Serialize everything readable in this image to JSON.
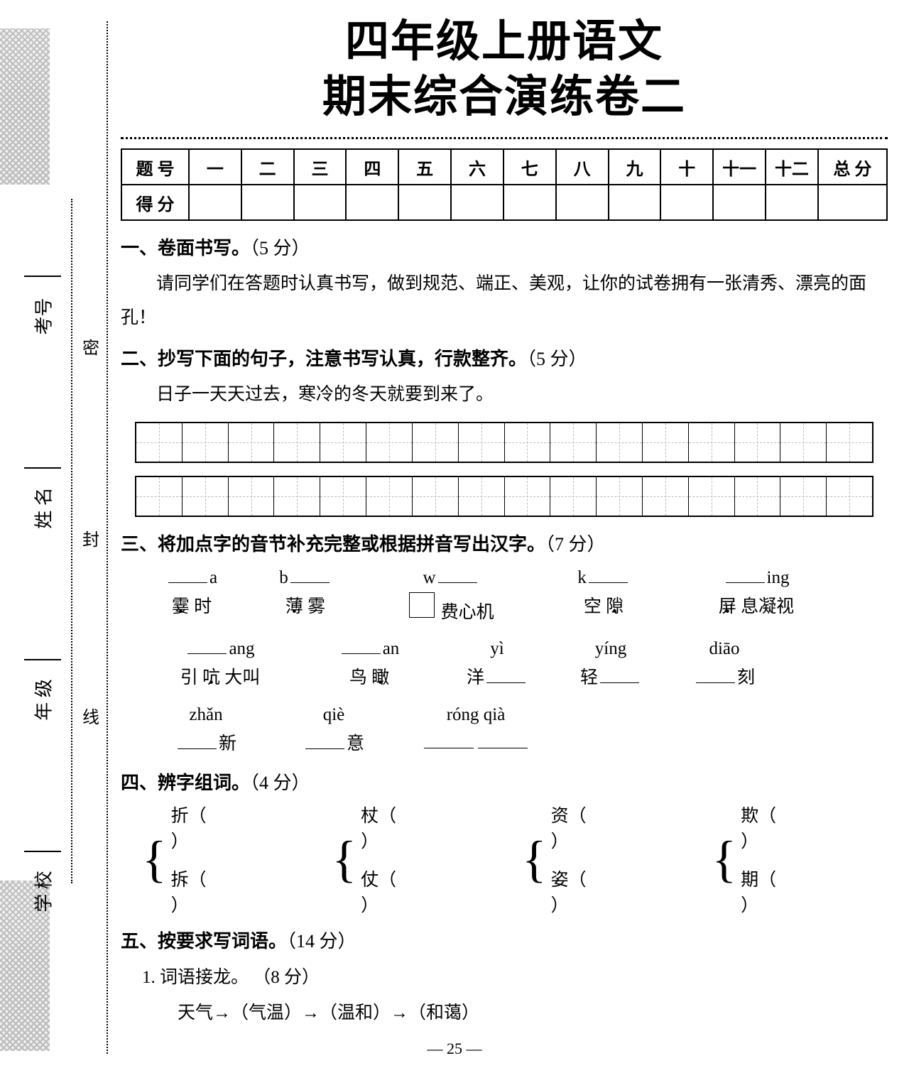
{
  "colors": {
    "text": "#000000",
    "bg": "#ffffff",
    "deco": "#bbbbbb",
    "dash": "#bbbbbb"
  },
  "title_line1": "四年级上册语文",
  "title_line2": "期末综合演练卷二",
  "score_table": {
    "row_label": "题 号",
    "score_label": "得 分",
    "cols": [
      "一",
      "二",
      "三",
      "四",
      "五",
      "六",
      "七",
      "八",
      "九",
      "十",
      "十一",
      "十二"
    ],
    "total": "总 分"
  },
  "side": {
    "v_labels": [
      "密",
      "封",
      "线"
    ],
    "fields": [
      {
        "label": "考号"
      },
      {
        "label": "姓 名"
      },
      {
        "label": "年 级"
      },
      {
        "label": "学 校"
      }
    ]
  },
  "sec1": {
    "title": "一、卷面书写。",
    "points": "（5 分）",
    "text": "请同学们在答题时认真书写，做到规范、端正、美观，让你的试卷拥有一张清秀、漂亮的面孔！"
  },
  "sec2": {
    "title": "二、抄写下面的句子，注意书写认真，行款整齐。",
    "points": "（5 分）",
    "sentence": "日子一天天过去，寒冷的冬天就要到来了。",
    "grid": {
      "rows": 2,
      "cols": 16
    }
  },
  "sec3": {
    "title": "三、将加点字的音节补充完整或根据拼音写出汉字。",
    "points": "（7 分）",
    "row1": {
      "pinyin": [
        "a",
        "b",
        "w",
        "k",
        "ing"
      ],
      "words": [
        {
          "pre": "",
          "dot": "霎",
          "post": " 时"
        },
        {
          "pre": "",
          "dot": "薄",
          "post": " 雾"
        },
        {
          "pre": "",
          "box": true,
          "post": " 费心机"
        },
        {
          "pre": "空 ",
          "dot": "隙",
          "post": ""
        },
        {
          "pre": "",
          "dot": "屏",
          "post": " 息凝视"
        }
      ]
    },
    "row2": {
      "pinyin": [
        "ang",
        "an",
        "yì",
        "yíng",
        "diāo"
      ],
      "words": [
        {
          "pre": "引 ",
          "dot": "吭",
          "post": " 大叫"
        },
        {
          "pre": "鸟 ",
          "dot": "瞰",
          "post": ""
        },
        {
          "pre": "洋 ",
          "blank": true,
          "post": ""
        },
        {
          "pre": "轻 ",
          "blank": true,
          "post": ""
        },
        {
          "pre": "",
          "blank": true,
          "post": " 刻"
        }
      ]
    },
    "row3": {
      "pinyin": [
        "zhǎn",
        "qiè",
        "róng qià"
      ],
      "words": [
        {
          "pre": "",
          "blank": true,
          "post": " 新"
        },
        {
          "pre": "",
          "blank": true,
          "post": " 意"
        },
        {
          "pre": "",
          "blank": true,
          "blank2": true,
          "post": ""
        }
      ]
    }
  },
  "sec4": {
    "title": "四、辨字组词。",
    "points": "（4 分）",
    "pairs": [
      [
        "折",
        "拆"
      ],
      [
        "杖",
        "仗"
      ],
      [
        "资",
        "姿"
      ],
      [
        "欺",
        "期"
      ]
    ]
  },
  "sec5": {
    "title": "五、按要求写词语。",
    "points": "（14 分）",
    "sub1": {
      "label": "1. 词语接龙。",
      "points": "（8 分）",
      "chain": "天气→（气温）→（温和）→（和蔼）"
    }
  },
  "page_number": "—  25  —"
}
